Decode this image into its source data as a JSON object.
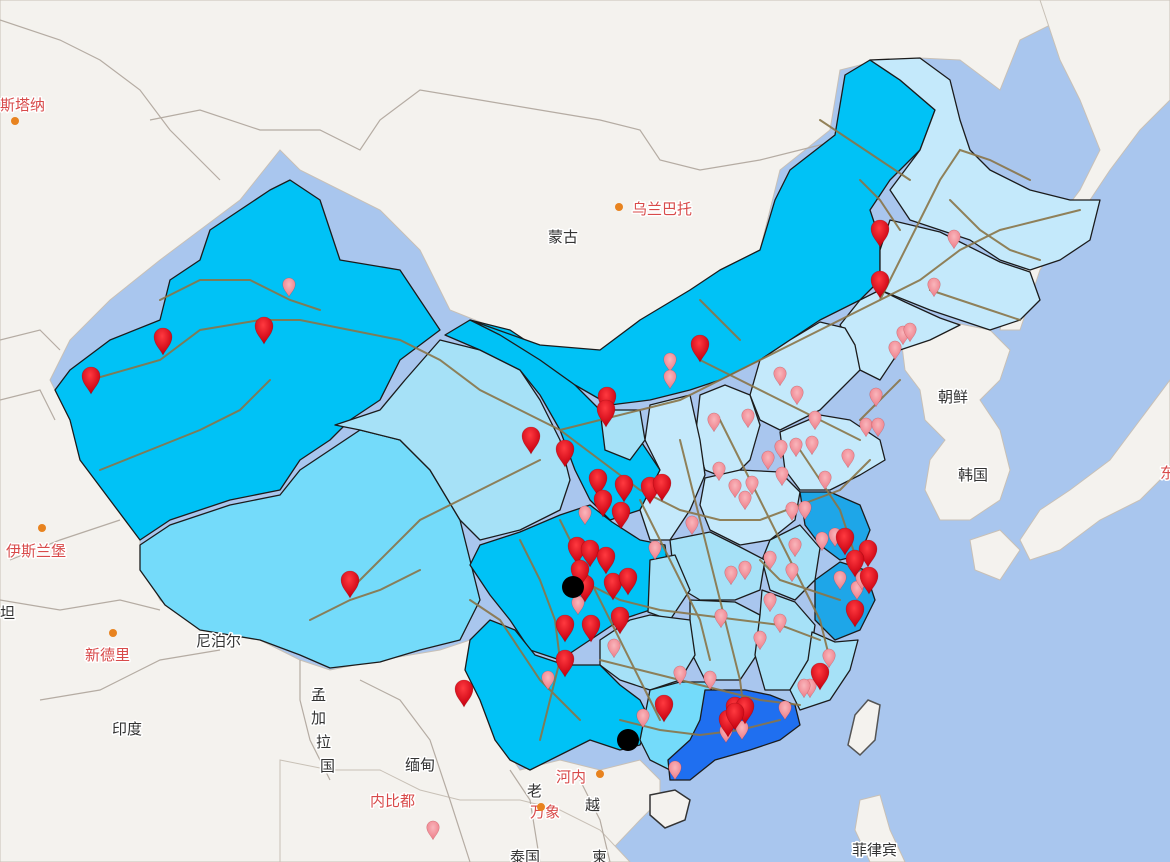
{
  "colors": {
    "sea": "#a9c6ee",
    "land": "#f4f2ee",
    "border": "#b5aca3",
    "rail": "#8a7548",
    "province_lightest": "#c4e9fb",
    "province_light": "#a6e1f7",
    "province_mid": "#74dbfa",
    "province_bright": "#00c2f6",
    "province_blue": "#1ea6e8",
    "province_darkblue": "#1f6ff0",
    "marker_red": "#e20f1b",
    "marker_pink": "#f28b94",
    "marker_black": "#000000",
    "label_country": "#333333",
    "label_city": "#d84a4a"
  },
  "labels": {
    "countries": [
      {
        "id": "mongolia",
        "text": "蒙古"
      },
      {
        "id": "north-korea",
        "text": "朝鲜"
      },
      {
        "id": "south-korea",
        "text": "韩国"
      },
      {
        "id": "nepal",
        "text": "尼泊尔"
      },
      {
        "id": "india",
        "text": "印度"
      },
      {
        "id": "myanmar",
        "text": "缅甸"
      },
      {
        "id": "bangladesh-ch1",
        "text": "孟"
      },
      {
        "id": "bangladesh-ch2",
        "text": "加"
      },
      {
        "id": "bangladesh-ch3",
        "text": "拉"
      },
      {
        "id": "bangladesh-ch4",
        "text": "国"
      },
      {
        "id": "laos",
        "text": "老"
      },
      {
        "id": "vietnam",
        "text": "越"
      },
      {
        "id": "thailand",
        "text": "泰国"
      },
      {
        "id": "philippines",
        "text": "菲律宾"
      },
      {
        "id": "cambodia-partial",
        "text": "柬"
      },
      {
        "id": "tajik-partial",
        "text": "坦"
      }
    ],
    "cities": [
      {
        "id": "astana",
        "text": "斯塔纳"
      },
      {
        "id": "ulaanbaatar",
        "text": "乌兰巴托"
      },
      {
        "id": "islamabad",
        "text": "伊斯兰堡"
      },
      {
        "id": "new-delhi",
        "text": "新德里"
      },
      {
        "id": "hanoi",
        "text": "河内"
      },
      {
        "id": "vientiane",
        "text": "万象"
      },
      {
        "id": "naypyidaw",
        "text": "内比都"
      },
      {
        "id": "japan-partial",
        "text": "东"
      }
    ]
  },
  "markers": {
    "red_count": 58,
    "pink_count": 72,
    "black_count": 2
  }
}
